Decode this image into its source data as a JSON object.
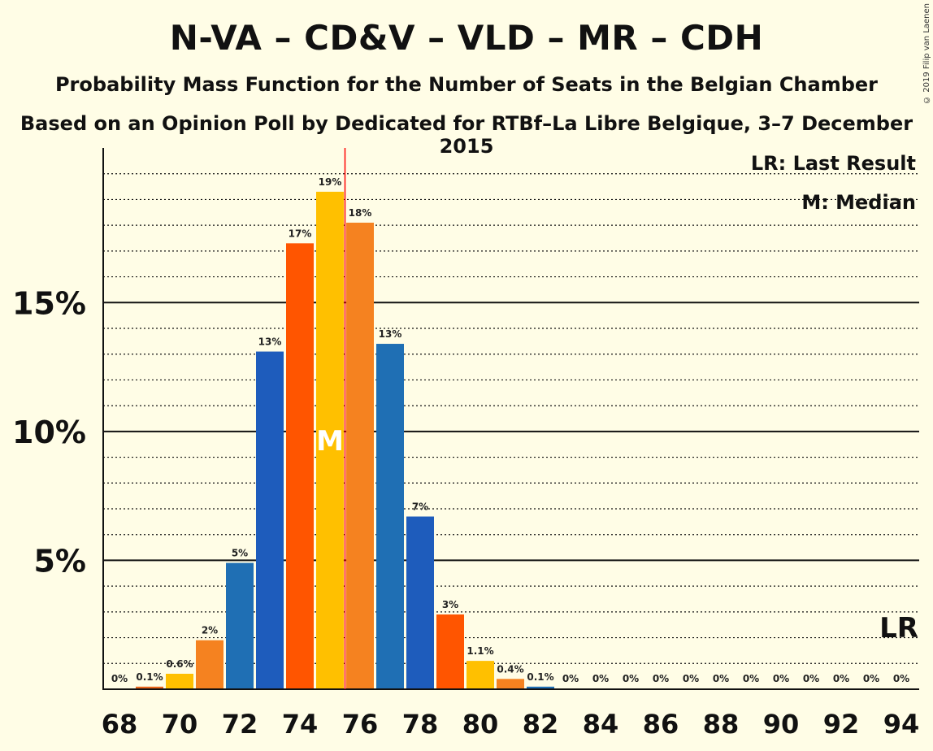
{
  "title": "N-VA – CD&V – VLD – MR – CDH",
  "subtitle": "Probability Mass Function for the Number of Seats in the Belgian Chamber",
  "subtitle2": "Based on an Opinion Poll by Dedicated for RTBf–La Libre Belgique, 3–7 December 2015",
  "copyright": "© 2019 Filip van Laenen",
  "legend": {
    "lr": "LR: Last Result",
    "median": "M: Median",
    "lr_marker": "LR",
    "median_marker": "M"
  },
  "colors": {
    "background": "#FFFDE6",
    "median_line": "#FF0000",
    "bar_palette": [
      "#F58220",
      "#FFC000",
      "#F58220",
      "#1F5FA8",
      "#FF5500"
    ]
  },
  "chart_data": {
    "type": "bar",
    "x": [
      68,
      69,
      70,
      71,
      72,
      73,
      74,
      75,
      76,
      77,
      78,
      79,
      80,
      81,
      82,
      83,
      84,
      85,
      86,
      87,
      88,
      89,
      90,
      91,
      92,
      93,
      94
    ],
    "values": [
      0,
      0.1,
      0.6,
      1.9,
      4.9,
      13.1,
      17.3,
      19.3,
      18.1,
      13.4,
      6.7,
      2.9,
      1.1,
      0.4,
      0.1,
      0,
      0,
      0,
      0,
      0,
      0,
      0,
      0,
      0,
      0,
      0,
      0
    ],
    "labels": [
      "0%",
      "0.1%",
      "0.6%",
      "2%",
      "5%",
      "13%",
      "17%",
      "19%",
      "18%",
      "13%",
      "7%",
      "3%",
      "1.1%",
      "0.4%",
      "0.1%",
      "0%",
      "0%",
      "0%",
      "0%",
      "0%",
      "0%",
      "0%",
      "0%",
      "0%",
      "0%",
      "0%",
      "0%"
    ],
    "bar_colors": [
      "#F58220",
      "#E8641A",
      "#FFC000",
      "#F58220",
      "#1F6FB4",
      "#1E5CBC",
      "#FF5500",
      "#FFC000",
      "#F58220",
      "#1F6FB4",
      "#1E5CBC",
      "#FF5500",
      "#FFC000",
      "#F58220",
      "#1F6FB4",
      "#1E5CBC",
      "#FF5500",
      "#FFC000",
      "#F58220",
      "#1F6FB4",
      "#1E5CBC",
      "#FF5500",
      "#FFC000",
      "#F58220",
      "#1F6FB4",
      "#1E5CBC",
      "#FF5500"
    ],
    "x_ticks": [
      68,
      70,
      72,
      74,
      76,
      78,
      80,
      82,
      84,
      86,
      88,
      90,
      92,
      94
    ],
    "y_ticks": [
      5,
      10,
      15
    ],
    "y_tick_labels": [
      "5%",
      "10%",
      "15%"
    ],
    "ylim": [
      0,
      21
    ],
    "median": 75,
    "median_line_at": 75.5,
    "last_result": 94,
    "grid": true,
    "legend_position": "top-right"
  }
}
